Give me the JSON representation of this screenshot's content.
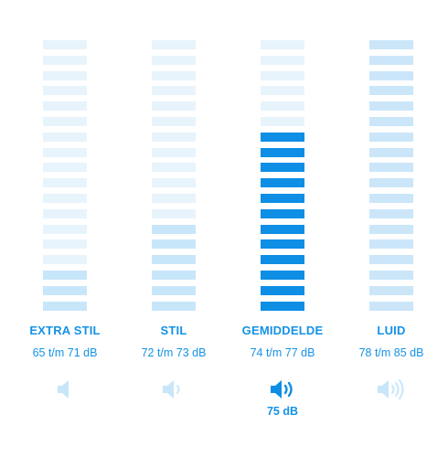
{
  "levels": [
    {
      "label": "EXTRA STIL",
      "range": "65 t/m 71 dB",
      "active_segments": 3,
      "total_segments": 18,
      "icon": "speaker-muted-icon",
      "selected": false
    },
    {
      "label": "STIL",
      "range": "72 t/m 73 dB",
      "active_segments": 6,
      "total_segments": 18,
      "icon": "speaker-low-icon",
      "selected": false
    },
    {
      "label": "GEMIDDELDE",
      "range": "74 t/m 77 dB",
      "active_segments": 12,
      "total_segments": 18,
      "icon": "speaker-medium-icon",
      "selected": true,
      "reading": "75 dB"
    },
    {
      "label": "LUID",
      "range": "78 t/m 85 dB",
      "active_segments": 18,
      "total_segments": 18,
      "icon": "speaker-loud-icon",
      "selected": false
    }
  ],
  "colors": {
    "accent": "#1592e6",
    "active_selected": "#0e8ee5",
    "active_light": "#c8e6f9",
    "inactive": "#e8f4fc",
    "icon_light": "#b9dcf5"
  }
}
